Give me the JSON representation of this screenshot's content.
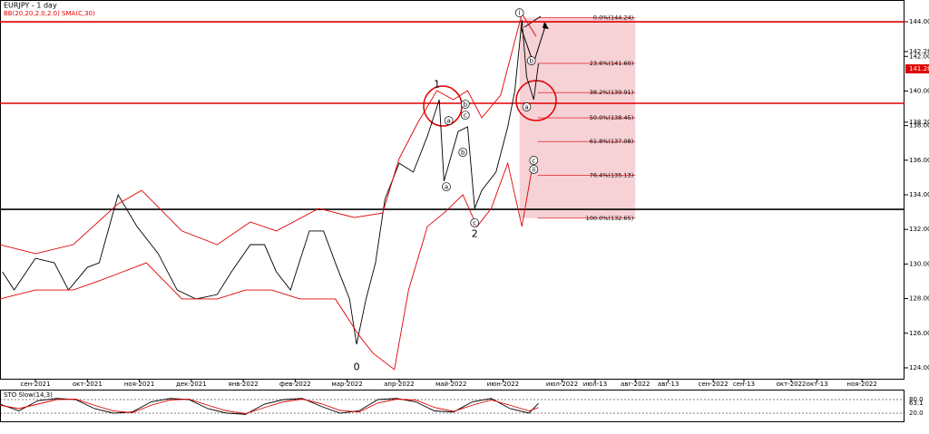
{
  "chart_data": {
    "type": "line",
    "title": "EURJPY - 1 day",
    "subtitle": "BB(20,20,2.0,2.0) SMA(C,30)",
    "xlim": [
      0,
      383
    ],
    "xticks": [
      {
        "value": 15,
        "label": "сен-2021"
      },
      {
        "value": 37,
        "label": "окт-2021"
      },
      {
        "value": 59,
        "label": "ноя-2021"
      },
      {
        "value": 81,
        "label": "дек-2021"
      },
      {
        "value": 103,
        "label": "янв-2022"
      },
      {
        "value": 125,
        "label": "фев-2022"
      },
      {
        "value": 147,
        "label": "мар-2022"
      },
      {
        "value": 169,
        "label": "апр-2022"
      },
      {
        "value": 191,
        "label": "май-2022"
      },
      {
        "value": 213,
        "label": "июн-2022"
      },
      {
        "value": 238,
        "label": "июл-2022"
      },
      {
        "value": 252,
        "label": "июл-13"
      },
      {
        "value": 269,
        "label": "авг-2022"
      },
      {
        "value": 283,
        "label": "авг-13"
      },
      {
        "value": 302,
        "label": "сен-2022"
      },
      {
        "value": 315,
        "label": "сен-13"
      },
      {
        "value": 335,
        "label": "окт-2022"
      },
      {
        "value": 346,
        "label": "окт-13"
      },
      {
        "value": 365,
        "label": "ноя-2022"
      }
    ],
    "ylim": [
      123.37,
      145.26
    ],
    "yticks": [
      {
        "value": 124,
        "label": "124.00"
      },
      {
        "value": 126,
        "label": "126.00"
      },
      {
        "value": 128,
        "label": "128.00"
      },
      {
        "value": 130,
        "label": "130.00"
      },
      {
        "value": 132,
        "label": "132.00"
      },
      {
        "value": 134,
        "label": "134.00"
      },
      {
        "value": 136,
        "label": "136.00"
      },
      {
        "value": 138,
        "label": "138.00"
      },
      {
        "value": 140,
        "label": "140.00"
      },
      {
        "value": 142,
        "label": "142.00"
      },
      {
        "value": 144,
        "label": "144.00"
      }
    ],
    "series": [
      {
        "name": "EURJPY",
        "color": "#000000",
        "x": [
          1,
          6,
          15,
          23,
          29,
          37,
          42,
          50,
          58,
          67,
          75,
          83,
          92,
          98,
          106,
          112,
          117,
          123,
          131,
          137,
          142,
          148,
          151,
          155,
          159,
          163,
          169,
          175,
          181,
          186,
          188,
          194,
          198,
          201,
          204,
          210,
          215,
          218,
          221,
          223,
          226,
          228
        ],
        "values": [
          129.55,
          128.5,
          130.33,
          130.07,
          128.5,
          129.81,
          130.07,
          134.0,
          132.17,
          130.6,
          128.5,
          127.98,
          128.24,
          129.55,
          131.12,
          131.12,
          129.55,
          128.5,
          131.91,
          131.91,
          130.07,
          127.98,
          125.36,
          127.98,
          130.07,
          133.74,
          135.83,
          135.31,
          137.4,
          139.5,
          134.79,
          137.66,
          137.93,
          133.21,
          134.26,
          135.31,
          137.93,
          140.02,
          144.1,
          140.81,
          139.5,
          141.59
        ]
      },
      {
        "name": "BB upper",
        "color": "#e00000",
        "x": [
          0,
          15,
          31,
          50,
          60,
          77,
          92,
          106,
          117,
          135,
          150,
          162,
          169,
          177,
          185,
          192,
          198,
          204,
          212,
          221,
          227
        ],
        "values": [
          131.12,
          130.6,
          131.12,
          133.48,
          134.26,
          131.91,
          131.12,
          132.43,
          131.91,
          133.21,
          132.69,
          132.95,
          136.09,
          138.19,
          140.02,
          139.5,
          140.02,
          138.45,
          139.76,
          144.47,
          143.16
        ]
      },
      {
        "name": "BB lower",
        "color": "#e00000",
        "x": [
          0,
          15,
          31,
          42,
          62,
          77,
          92,
          104,
          115,
          127,
          142,
          152,
          158,
          167,
          173,
          181,
          188,
          196,
          202,
          208,
          215,
          221,
          225
        ],
        "values": [
          127.98,
          128.5,
          128.5,
          129.03,
          130.07,
          127.98,
          127.98,
          128.5,
          128.5,
          127.98,
          127.98,
          125.88,
          124.84,
          123.9,
          128.5,
          132.17,
          132.95,
          134.0,
          132.17,
          133.21,
          135.83,
          132.17,
          135.31
        ]
      }
    ],
    "levels": [
      {
        "value": 144.0,
        "color": "#e00000"
      },
      {
        "value": 139.29,
        "color": "#e00000"
      },
      {
        "value": 133.16,
        "color": "#000000"
      }
    ],
    "fibonacci": {
      "x": [
        220,
        269
      ],
      "color": "#f4c6cc",
      "levels": [
        {
          "value": 144.24,
          "label": "0.0%(144.24)"
        },
        {
          "value": 141.6,
          "label": "23.6%(141.60)"
        },
        {
          "value": 139.91,
          "label": "38.2%(139.91)"
        },
        {
          "value": 138.45,
          "label": "50.0%(138.45)"
        },
        {
          "value": 137.08,
          "label": "61.8%(137.08)"
        },
        {
          "value": 135.13,
          "label": "76.4%(135.13)"
        },
        {
          "value": 132.65,
          "label": "100.0%(132.65)"
        }
      ]
    },
    "price_labels": [
      {
        "value": 142.28,
        "label": "142.28"
      },
      {
        "value": 138.2,
        "label": "138.20"
      }
    ],
    "current_price": {
      "value": 141.28,
      "label": "141.28"
    },
    "annotations": [
      {
        "text": "1",
        "x": 185,
        "y": 140.39,
        "circled": false
      },
      {
        "text": "2",
        "x": 201,
        "y": 131.75,
        "circled": false
      },
      {
        "text": "0",
        "x": 151,
        "y": 124.05,
        "circled": false
      },
      {
        "text": "i",
        "x": 220,
        "y": 144.52,
        "circled": true
      },
      {
        "text": "a",
        "x": 190,
        "y": 138.29,
        "circled": true
      },
      {
        "text": "b",
        "x": 197,
        "y": 139.24,
        "circled": true
      },
      {
        "text": "c",
        "x": 197,
        "y": 138.6,
        "circled": true
      },
      {
        "text": "b",
        "x": 196,
        "y": 136.46,
        "circled": true
      },
      {
        "text": "a",
        "x": 189,
        "y": 134.47,
        "circled": true
      },
      {
        "text": "c",
        "x": 201,
        "y": 132.38,
        "circled": true
      },
      {
        "text": "b",
        "x": 225,
        "y": 141.75,
        "circled": true
      },
      {
        "text": "a",
        "x": 223,
        "y": 139.08,
        "circled": true
      },
      {
        "text": "c",
        "x": 226,
        "y": 135.99,
        "circled": true
      },
      {
        "text": "ii",
        "x": 226,
        "y": 135.47,
        "circled": true
      }
    ],
    "stochastic": {
      "title": "STO Slow(14,3)",
      "ylim": [
        -20,
        120
      ],
      "yticks": [
        {
          "value": 80,
          "label": "80.0"
        },
        {
          "value": 20,
          "label": "20.0"
        }
      ],
      "current": {
        "value": 63.1,
        "label": "63.1"
      },
      "x": [
        0,
        8,
        16,
        24,
        32,
        40,
        48,
        56,
        64,
        72,
        80,
        88,
        96,
        104,
        112,
        120,
        128,
        136,
        144,
        152,
        160,
        168,
        176,
        184,
        192,
        200,
        208,
        216,
        224,
        228
      ],
      "series": [
        {
          "name": "main",
          "color": "#000000",
          "values": [
            60,
            30,
            75,
            85,
            80,
            40,
            20,
            25,
            70,
            85,
            80,
            40,
            20,
            15,
            60,
            80,
            85,
            50,
            20,
            30,
            80,
            85,
            70,
            30,
            25,
            70,
            85,
            40,
            20,
            63.1
          ]
        },
        {
          "name": "signal",
          "color": "#e00000",
          "values": [
            55,
            40,
            60,
            80,
            82,
            55,
            30,
            22,
            55,
            78,
            82,
            55,
            30,
            18,
            45,
            70,
            82,
            62,
            32,
            25,
            65,
            82,
            78,
            45,
            28,
            55,
            78,
            55,
            30,
            45
          ]
        }
      ]
    }
  }
}
